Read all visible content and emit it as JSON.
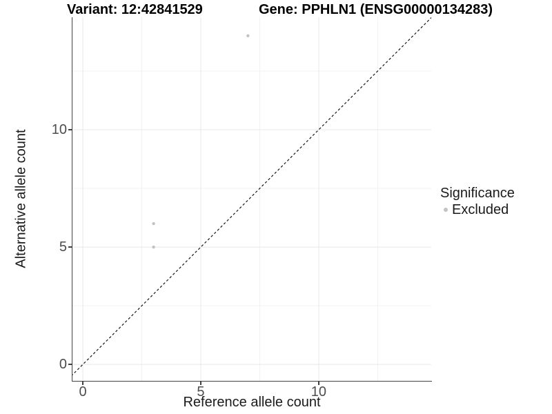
{
  "titles": {
    "variant": "Variant: 12:42841529",
    "gene": "Gene: PPHLN1 (ENSG00000134283)"
  },
  "chart_data": {
    "type": "scatter",
    "title_left": "Variant: 12:42841529",
    "title_right": "Gene: PPHLN1 (ENSG00000134283)",
    "xlabel": "Reference allele count",
    "ylabel": "Alternative allele count",
    "xlim": [
      -0.44,
      14.77
    ],
    "ylim": [
      -0.7,
      14.79
    ],
    "x_ticks": [
      0,
      5,
      10
    ],
    "y_ticks": [
      0,
      5,
      10
    ],
    "x_minor_ticks": [
      2.5,
      7.5,
      12.5
    ],
    "y_minor_ticks": [
      2.5,
      7.5,
      12.5
    ],
    "grid": true,
    "series": [
      {
        "name": "Excluded",
        "color": "#c2c2c2",
        "points": [
          {
            "x": 3,
            "y": 5
          },
          {
            "x": 3,
            "y": 6
          },
          {
            "x": 7,
            "y": 14
          }
        ]
      }
    ],
    "identity_line": {
      "slope": 1,
      "intercept": 0,
      "style": "dashed",
      "color": "#141414"
    },
    "legend": {
      "title": "Significance",
      "position": "right",
      "items": [
        {
          "label": "Excluded",
          "color": "#c2c2c2"
        }
      ]
    },
    "colors": {
      "grid_major": "#e8e8e8",
      "grid_minor": "#f2f2f2",
      "axis_line": "#404040",
      "tick_text": "#4d4d4d",
      "point": "#c2c2c2"
    }
  }
}
